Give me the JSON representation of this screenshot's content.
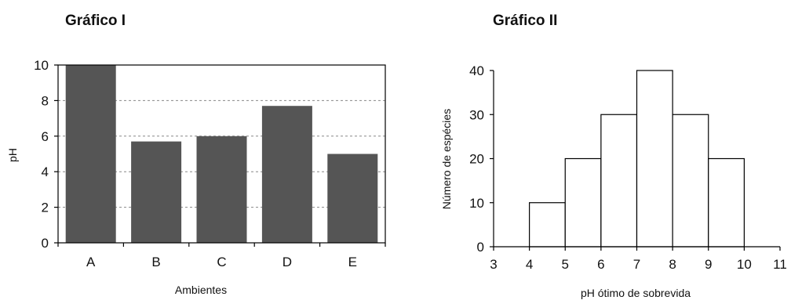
{
  "chart_data": [
    {
      "type": "bar",
      "title": "Gráfico I",
      "xlabel": "Ambientes",
      "ylabel": "pH",
      "categories": [
        "A",
        "B",
        "C",
        "D",
        "E"
      ],
      "values": [
        10,
        5.7,
        6,
        7.7,
        5
      ],
      "ylim": [
        0,
        10
      ],
      "yticks": [
        "0",
        "2",
        "4",
        "6",
        "8",
        "10"
      ],
      "grid": true,
      "bar_color": "#555555"
    },
    {
      "type": "bar",
      "title": "Gráfico II",
      "xlabel": "pH ótimo de sobrevida",
      "ylabel": "Número de espécies",
      "bins": [
        [
          4,
          5
        ],
        [
          5,
          6
        ],
        [
          6,
          7
        ],
        [
          7,
          8
        ],
        [
          8,
          9
        ],
        [
          9,
          10
        ]
      ],
      "values": [
        10,
        20,
        30,
        40,
        30,
        20
      ],
      "xlim": [
        3,
        11
      ],
      "xticks": [
        "3",
        "4",
        "5",
        "6",
        "7",
        "8",
        "9",
        "10",
        "11"
      ],
      "ylim": [
        0,
        40
      ],
      "yticks": [
        "0",
        "10",
        "20",
        "30",
        "40"
      ],
      "grid": false,
      "bar_color": "#ffffff"
    }
  ]
}
